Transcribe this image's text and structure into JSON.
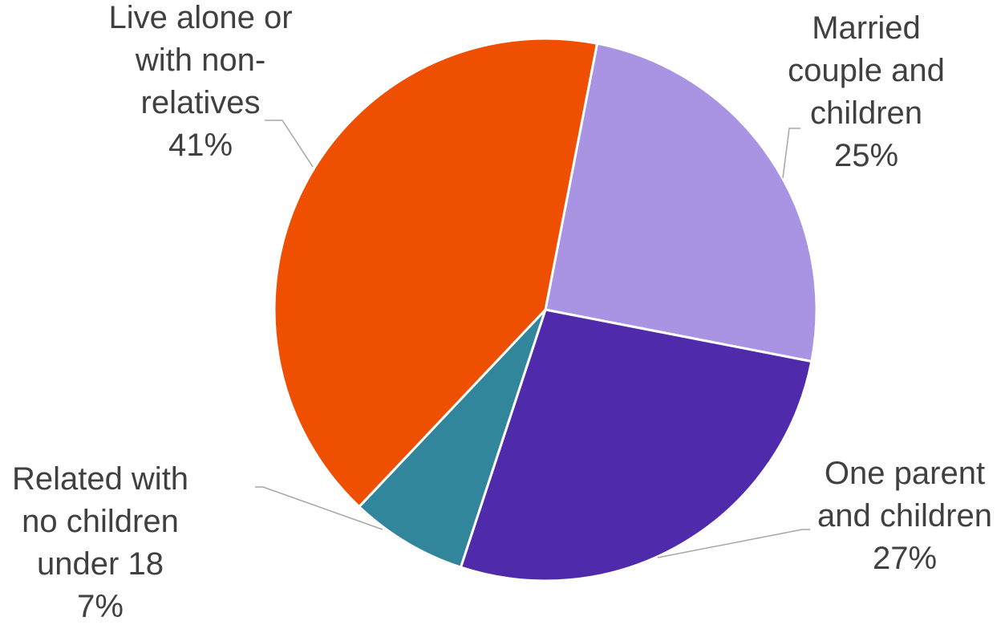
{
  "chart_data": {
    "type": "pie",
    "title": "",
    "slices": [
      {
        "category": "Married couple and children",
        "label_lines": [
          "Married",
          "couple and",
          "children"
        ],
        "value": 25,
        "value_label": "25%",
        "color": "#a993e3"
      },
      {
        "category": "One parent and children",
        "label_lines": [
          "One parent",
          "and children"
        ],
        "value": 27,
        "value_label": "27%",
        "color": "#4f2bab"
      },
      {
        "category": "Related with no children under 18",
        "label_lines": [
          "Related with",
          "no children",
          "under 18"
        ],
        "value": 7,
        "value_label": "7%",
        "color": "#31869b"
      },
      {
        "category": "Live alone or with non-relatives",
        "label_lines": [
          "Live alone or",
          "with non-",
          "relatives"
        ],
        "value": 41,
        "value_label": "41%",
        "color": "#ef4f00"
      }
    ],
    "start_angle_deg": 11,
    "direction": "clockwise",
    "legend": "none"
  }
}
